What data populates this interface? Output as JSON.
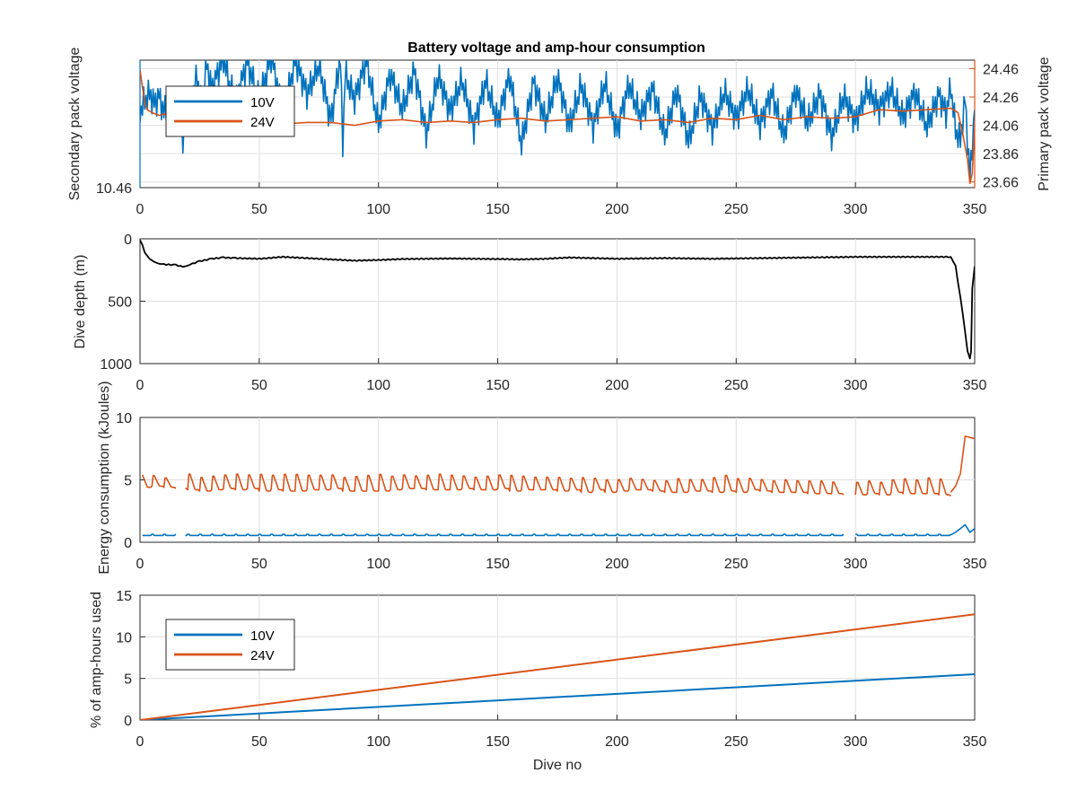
{
  "figure_title": "Battery voltage and amp-hour consumption",
  "colors": {
    "s10": "#0072BD",
    "s24": "#D95319",
    "depth": "#000000"
  },
  "chart_data": [
    {
      "type": "line",
      "title": "Battery voltage and amp-hour consumption",
      "xlabel": "",
      "xlim": [
        0,
        350
      ],
      "xticks": [
        "0",
        "50",
        "100",
        "150",
        "200",
        "250",
        "300",
        "350"
      ],
      "ylabel_left": "Secondary pack voltage",
      "yticks_left": [
        "10.46"
      ],
      "ylim_left": [
        10.46,
        10.56
      ],
      "ylabel_right": "Primary pack voltage",
      "yticks_right": [
        "24.46",
        "24.26",
        "24.06",
        "23.86",
        "23.66"
      ],
      "ylim_right": [
        23.62,
        24.52
      ],
      "grid": true,
      "legend": {
        "placement": "top-left",
        "entries": [
          "10V",
          "24V"
        ]
      },
      "series": [
        {
          "name": "10V",
          "axis": "left",
          "x": [
            0,
            2,
            4,
            6,
            8,
            10,
            12,
            14,
            16,
            18,
            20,
            22,
            24,
            26,
            28,
            30,
            35,
            40,
            45,
            50,
            55,
            60,
            65,
            70,
            75,
            80,
            84,
            85,
            86,
            90,
            95,
            100,
            105,
            110,
            115,
            120,
            125,
            130,
            135,
            140,
            145,
            150,
            155,
            160,
            165,
            170,
            175,
            180,
            185,
            190,
            195,
            200,
            205,
            210,
            215,
            220,
            225,
            230,
            235,
            240,
            245,
            250,
            255,
            260,
            265,
            270,
            275,
            280,
            285,
            290,
            295,
            300,
            305,
            310,
            315,
            320,
            325,
            330,
            335,
            338,
            340,
            342,
            344,
            346,
            348,
            350
          ],
          "values": [
            10.521,
            10.529,
            10.534,
            10.525,
            10.531,
            10.519,
            10.527,
            10.512,
            10.524,
            10.499,
            10.518,
            10.531,
            10.549,
            10.521,
            10.558,
            10.536,
            10.561,
            10.526,
            10.558,
            10.529,
            10.562,
            10.517,
            10.56,
            10.533,
            10.557,
            10.511,
            10.562,
            10.494,
            10.55,
            10.529,
            10.559,
            10.51,
            10.548,
            10.522,
            10.551,
            10.502,
            10.548,
            10.519,
            10.545,
            10.506,
            10.544,
            10.512,
            10.547,
            10.495,
            10.542,
            10.513,
            10.546,
            10.508,
            10.541,
            10.507,
            10.543,
            10.503,
            10.541,
            10.516,
            10.537,
            10.502,
            10.535,
            10.497,
            10.532,
            10.505,
            10.536,
            10.513,
            10.538,
            10.509,
            10.534,
            10.502,
            10.535,
            10.512,
            10.533,
            10.5,
            10.532,
            10.511,
            10.538,
            10.521,
            10.537,
            10.515,
            10.534,
            10.509,
            10.532,
            10.518,
            10.54,
            10.506,
            10.497,
            10.529,
            10.466,
            10.521
          ]
        },
        {
          "name": "24V",
          "axis": "right",
          "x": [
            0,
            1,
            2,
            3,
            5,
            8,
            10,
            15,
            20,
            25,
            30,
            35,
            40,
            45,
            50,
            60,
            70,
            80,
            90,
            100,
            110,
            120,
            130,
            140,
            150,
            160,
            170,
            180,
            190,
            200,
            210,
            220,
            230,
            240,
            250,
            260,
            270,
            280,
            290,
            300,
            310,
            320,
            330,
            340,
            343,
            345,
            347,
            348,
            349,
            350
          ],
          "values": [
            24.45,
            24.33,
            24.22,
            24.17,
            24.15,
            24.13,
            24.14,
            24.11,
            24.12,
            24.1,
            24.08,
            24.09,
            24.07,
            24.08,
            24.09,
            24.07,
            24.08,
            24.08,
            24.06,
            24.09,
            24.1,
            24.08,
            24.09,
            24.08,
            24.1,
            24.11,
            24.09,
            24.1,
            24.11,
            24.12,
            24.09,
            24.1,
            24.08,
            24.11,
            24.1,
            24.13,
            24.1,
            24.12,
            24.11,
            24.12,
            24.17,
            24.16,
            24.17,
            24.18,
            24.15,
            24.0,
            23.82,
            23.65,
            23.72,
            24.05
          ]
        }
      ]
    },
    {
      "type": "line",
      "xlim": [
        0,
        350
      ],
      "xticks": [
        "0",
        "50",
        "100",
        "150",
        "200",
        "250",
        "300",
        "350"
      ],
      "ylabel": "Dive depth (m)",
      "ylim": [
        0,
        1000
      ],
      "y_reversed": true,
      "yticks": [
        "0",
        "500",
        "1000"
      ],
      "grid": true,
      "series": [
        {
          "x": [
            0,
            1,
            2,
            4,
            6,
            8,
            10,
            15,
            18,
            20,
            22,
            25,
            30,
            35,
            40,
            50,
            60,
            70,
            80,
            90,
            100,
            110,
            120,
            130,
            140,
            150,
            160,
            170,
            180,
            190,
            200,
            220,
            240,
            260,
            280,
            300,
            320,
            330,
            340,
            342,
            345,
            347,
            348,
            348.5,
            349,
            350
          ],
          "values": [
            10,
            50,
            110,
            160,
            185,
            200,
            205,
            210,
            225,
            215,
            200,
            180,
            160,
            150,
            155,
            160,
            145,
            155,
            165,
            175,
            170,
            162,
            160,
            158,
            160,
            162,
            165,
            160,
            150,
            155,
            160,
            155,
            160,
            155,
            150,
            145,
            145,
            145,
            145,
            220,
            600,
            900,
            960,
            900,
            400,
            220
          ]
        }
      ]
    },
    {
      "type": "line",
      "xlim": [
        0,
        350
      ],
      "xticks": [
        "0",
        "50",
        "100",
        "150",
        "200",
        "250",
        "300",
        "350"
      ],
      "ylabel": "Energy consumption (kJoules)",
      "ylim": [
        0,
        10
      ],
      "yticks": [
        "0",
        "5",
        "10"
      ],
      "grid": true,
      "gap_x": [
        [
          15,
          19
        ],
        [
          295,
          300
        ],
        [
          346,
          349
        ]
      ],
      "series": [
        {
          "name": "24V",
          "period": 5,
          "spike_values": [
            5.6,
            5.5,
            5.3,
            6.5,
            5.7,
            5.4,
            5.5,
            5.6,
            5.7,
            5.6,
            5.7,
            5.6,
            5.7,
            5.7,
            5.6,
            5.6,
            5.6,
            5.4,
            5.5,
            5.6,
            5.7,
            5.5,
            5.6,
            5.5,
            5.6,
            5.7,
            5.6,
            5.5,
            5.4,
            5.5,
            5.6,
            5.6,
            5.5,
            5.4,
            5.4,
            5.4,
            5.3,
            5.4,
            5.3,
            5.2,
            5.2,
            5.3,
            5.2,
            5.1,
            5.1,
            5.3,
            5.2,
            5.2,
            5.4,
            5.6,
            5.3,
            5.3,
            5.2,
            5.1,
            5.2,
            5.1,
            5.1,
            5.1,
            5.0,
            5.0,
            5.0,
            5.1,
            5.0,
            5.2,
            5.3,
            5.2,
            5.4,
            5.3,
            5.3,
            5.2
          ],
          "baseline_values": [
            4.4,
            4.5,
            4.4,
            4.3,
            4.2,
            4.1,
            4.2,
            4.3,
            4.2,
            4.3,
            4.1,
            4.2,
            4.1,
            4.1,
            4.2,
            4.2,
            4.3,
            4.1,
            4.1,
            4.1,
            4.1,
            4.2,
            4.3,
            4.3,
            4.2,
            4.2,
            4.2,
            4.3,
            4.2,
            4.2,
            4.3,
            4.1,
            4.2,
            4.2,
            4.2,
            4.1,
            4.2,
            4.0,
            4.2,
            4.0,
            4.1,
            4.2,
            4.2,
            4.1,
            4.0,
            4.0,
            4.1,
            4.1,
            4.0,
            4.1,
            4.0,
            4.2,
            4.1,
            4.0,
            4.0,
            4.0,
            3.9,
            3.9,
            3.9,
            3.8,
            3.8,
            3.9,
            3.8,
            4.0,
            3.9,
            3.9,
            3.9,
            3.8,
            3.7,
            4.0
          ],
          "end_x": [
            340,
            342,
            344,
            346,
            350
          ],
          "end_values": [
            4.0,
            4.5,
            5.5,
            8.5,
            8.3
          ]
        },
        {
          "name": "10V",
          "period": 5,
          "level_values": [
            0.65,
            0.55
          ],
          "end_x": [
            340,
            342,
            344,
            346,
            348,
            350
          ],
          "end_values": [
            0.6,
            0.8,
            1.1,
            1.4,
            0.8,
            1.1
          ]
        }
      ]
    },
    {
      "type": "line",
      "xlim": [
        0,
        350
      ],
      "xticks": [
        "0",
        "50",
        "100",
        "150",
        "200",
        "250",
        "300",
        "350"
      ],
      "xlabel": "Dive no",
      "ylabel": "% of amp-hours used",
      "ylim": [
        0,
        15
      ],
      "yticks": [
        "0",
        "5",
        "10",
        "15"
      ],
      "grid": true,
      "legend": {
        "placement": "top-left",
        "entries": [
          "10V",
          "24V"
        ]
      },
      "series": [
        {
          "name": "10V",
          "x": [
            0,
            350
          ],
          "values": [
            0,
            5.5
          ]
        },
        {
          "name": "24V",
          "x": [
            0,
            350
          ],
          "values": [
            0,
            12.7
          ]
        }
      ]
    }
  ]
}
